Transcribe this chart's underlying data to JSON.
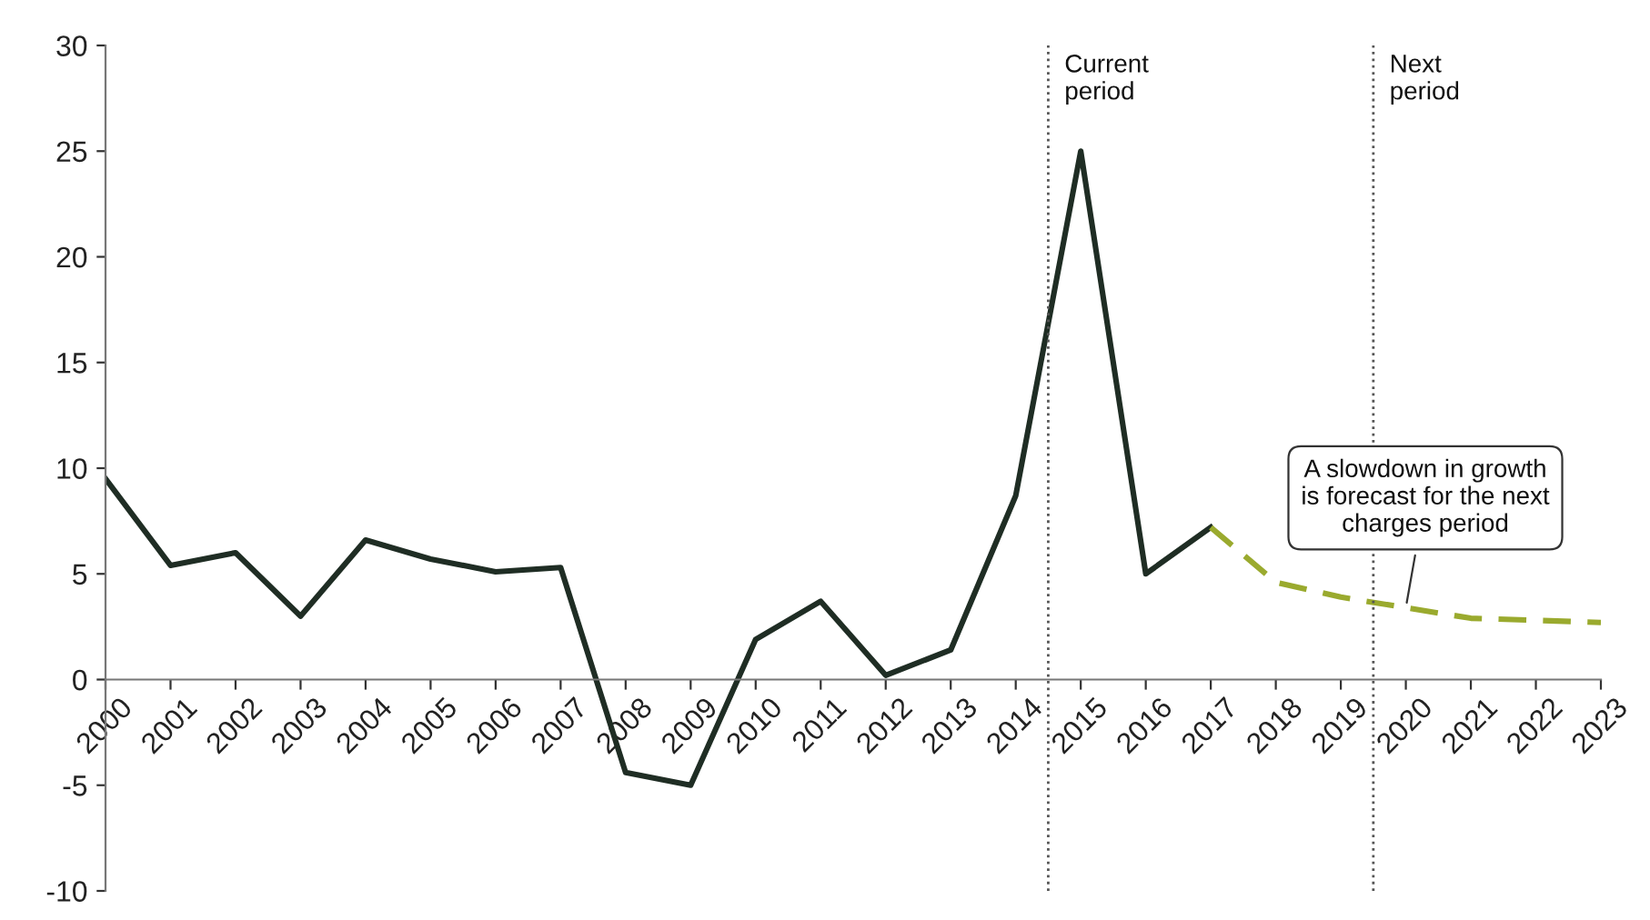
{
  "chart_data": {
    "type": "line",
    "series": [
      {
        "color": "#1f2d24",
        "line_style": "solid",
        "x": [
          2000,
          2001,
          2002,
          2003,
          2004,
          2005,
          2006,
          2007,
          2008,
          2009,
          2010,
          2011,
          2012,
          2013,
          2014,
          2015,
          2016,
          2017
        ],
        "values": [
          9.5,
          5.4,
          6.0,
          3.0,
          6.6,
          5.7,
          5.1,
          5.3,
          -4.4,
          -5.0,
          1.9,
          3.7,
          0.2,
          1.4,
          8.7,
          25.0,
          5.0,
          7.2
        ]
      },
      {
        "color": "#9aaa2e",
        "line_style": "dashed",
        "x": [
          2017,
          2018,
          2019,
          2020,
          2021,
          2022,
          2023
        ],
        "values": [
          7.2,
          4.6,
          3.9,
          3.4,
          2.9,
          2.8,
          2.7
        ]
      }
    ],
    "xlim": [
      2000,
      2023
    ],
    "xticks": [
      2000,
      2001,
      2002,
      2003,
      2004,
      2005,
      2006,
      2007,
      2008,
      2009,
      2010,
      2011,
      2012,
      2013,
      2014,
      2015,
      2016,
      2017,
      2018,
      2019,
      2020,
      2021,
      2022,
      2023
    ],
    "ylim": [
      -10,
      30
    ],
    "yticks": [
      -10,
      -5,
      0,
      5,
      10,
      15,
      20,
      25,
      30
    ],
    "grid": false,
    "legend": false,
    "marker": "none",
    "ref_lines": [
      {
        "axis": "x",
        "value": 2014.5,
        "label": "Current\nperiod",
        "color": "#555555",
        "line_style": "dotted"
      },
      {
        "axis": "x",
        "value": 2019.5,
        "label": "Next\nperiod",
        "color": "#555555",
        "line_style": "dotted"
      }
    ],
    "annotations": [
      {
        "text": "A slowdown in growth\nis forecast for the next\ncharges period",
        "x": 2020,
        "y": 3.4
      }
    ]
  }
}
